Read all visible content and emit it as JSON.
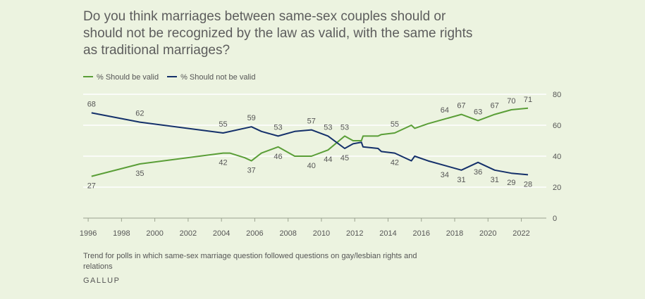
{
  "chart_data": {
    "type": "line",
    "title": "Do you think marriages between same-sex couples should or should not be recognized by the law as valid, with the same rights as traditional marriages?",
    "xlabel": "",
    "ylabel": "",
    "xlim": [
      1995.7,
      2023.5
    ],
    "ylim": [
      0,
      80
    ],
    "x_ticks": [
      1996,
      1998,
      2000,
      2002,
      2004,
      2006,
      2008,
      2010,
      2012,
      2014,
      2016,
      2018,
      2020,
      2022
    ],
    "y_ticks": [
      0,
      20,
      40,
      60,
      80
    ],
    "grid": true,
    "legend_position": "top-left",
    "series": [
      {
        "name": "% Should be valid",
        "color": "#5a9e37",
        "points": [
          {
            "x": 1996.2,
            "y": 27,
            "label": "27",
            "pos": "below"
          },
          {
            "x": 1999.1,
            "y": 35,
            "label": "35",
            "pos": "below"
          },
          {
            "x": 2004.1,
            "y": 42,
            "label": "42",
            "pos": "below"
          },
          {
            "x": 2004.5,
            "y": 42
          },
          {
            "x": 2005.4,
            "y": 39
          },
          {
            "x": 2005.8,
            "y": 37,
            "label": "37",
            "pos": "below"
          },
          {
            "x": 2006.4,
            "y": 42
          },
          {
            "x": 2007.4,
            "y": 46,
            "label": "46",
            "pos": "below"
          },
          {
            "x": 2008.4,
            "y": 40
          },
          {
            "x": 2009.4,
            "y": 40,
            "label": "40",
            "pos": "below"
          },
          {
            "x": 2010.4,
            "y": 44,
            "label": "44",
            "pos": "below"
          },
          {
            "x": 2011.4,
            "y": 53,
            "label": "53",
            "pos": "above"
          },
          {
            "x": 2011.9,
            "y": 50
          },
          {
            "x": 2012.4,
            "y": 50
          },
          {
            "x": 2012.5,
            "y": 53
          },
          {
            "x": 2013.4,
            "y": 53
          },
          {
            "x": 2013.6,
            "y": 54
          },
          {
            "x": 2014.4,
            "y": 55,
            "label": "55",
            "pos": "above"
          },
          {
            "x": 2015.4,
            "y": 60
          },
          {
            "x": 2015.6,
            "y": 58
          },
          {
            "x": 2016.4,
            "y": 61
          },
          {
            "x": 2017.4,
            "y": 64,
            "label": "64",
            "pos": "above"
          },
          {
            "x": 2018.4,
            "y": 67,
            "label": "67",
            "pos": "above"
          },
          {
            "x": 2019.4,
            "y": 63,
            "label": "63",
            "pos": "above"
          },
          {
            "x": 2020.4,
            "y": 67,
            "label": "67",
            "pos": "above"
          },
          {
            "x": 2021.4,
            "y": 70,
            "label": "70",
            "pos": "above"
          },
          {
            "x": 2022.4,
            "y": 71,
            "label": "71",
            "pos": "above"
          }
        ]
      },
      {
        "name": "% Should not be valid",
        "color": "#14306a",
        "points": [
          {
            "x": 1996.2,
            "y": 68,
            "label": "68",
            "pos": "above"
          },
          {
            "x": 1999.1,
            "y": 62,
            "label": "62",
            "pos": "above"
          },
          {
            "x": 2004.1,
            "y": 55,
            "label": "55",
            "pos": "above"
          },
          {
            "x": 2005.8,
            "y": 59,
            "label": "59",
            "pos": "above"
          },
          {
            "x": 2006.4,
            "y": 56
          },
          {
            "x": 2007.4,
            "y": 53,
            "label": "53",
            "pos": "above"
          },
          {
            "x": 2008.4,
            "y": 56
          },
          {
            "x": 2009.4,
            "y": 57,
            "label": "57",
            "pos": "above"
          },
          {
            "x": 2010.4,
            "y": 53,
            "label": "53",
            "pos": "above"
          },
          {
            "x": 2011.4,
            "y": 45,
            "label": "45",
            "pos": "below"
          },
          {
            "x": 2011.9,
            "y": 48
          },
          {
            "x": 2012.4,
            "y": 49
          },
          {
            "x": 2012.5,
            "y": 46
          },
          {
            "x": 2013.4,
            "y": 45
          },
          {
            "x": 2013.6,
            "y": 43
          },
          {
            "x": 2014.4,
            "y": 42,
            "label": "42",
            "pos": "below"
          },
          {
            "x": 2015.4,
            "y": 37
          },
          {
            "x": 2015.6,
            "y": 40
          },
          {
            "x": 2016.4,
            "y": 37
          },
          {
            "x": 2017.4,
            "y": 34,
            "label": "34",
            "pos": "below"
          },
          {
            "x": 2018.4,
            "y": 31,
            "label": "31",
            "pos": "below"
          },
          {
            "x": 2019.4,
            "y": 36,
            "label": "36",
            "pos": "below"
          },
          {
            "x": 2020.4,
            "y": 31,
            "label": "31",
            "pos": "below"
          },
          {
            "x": 2021.4,
            "y": 29,
            "label": "29",
            "pos": "below"
          },
          {
            "x": 2022.4,
            "y": 28,
            "label": "28",
            "pos": "below"
          }
        ]
      }
    ]
  },
  "note": "Trend for polls in which same-sex marriage question followed questions on gay/lesbian rights and relations",
  "source": "GALLUP"
}
